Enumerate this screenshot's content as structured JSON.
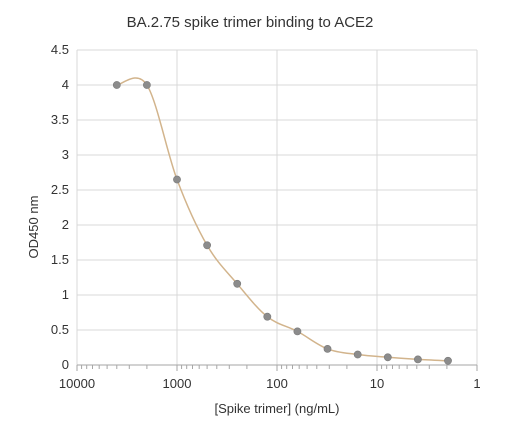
{
  "chart_data": {
    "type": "scatter",
    "title": "BA.2.75 spike trimer binding to ACE2",
    "xlabel": "[Spike trimer] (ng/mL)",
    "ylabel": "OD450 nm",
    "x_scale": "log",
    "x_reversed": true,
    "xlim": [
      1,
      10000
    ],
    "ylim": [
      0,
      4.5
    ],
    "x_ticks": [
      {
        "value": 10000,
        "label": "10000"
      },
      {
        "value": 1000,
        "label": "1000"
      },
      {
        "value": 100,
        "label": "100"
      },
      {
        "value": 10,
        "label": "10"
      },
      {
        "value": 1,
        "label": "1"
      }
    ],
    "y_ticks": [
      {
        "value": 0,
        "label": "0"
      },
      {
        "value": 0.5,
        "label": "0.5"
      },
      {
        "value": 1,
        "label": "1"
      },
      {
        "value": 1.5,
        "label": "1.5"
      },
      {
        "value": 2,
        "label": "2"
      },
      {
        "value": 2.5,
        "label": "2.5"
      },
      {
        "value": 3,
        "label": "3"
      },
      {
        "value": 3.5,
        "label": "3.5"
      },
      {
        "value": 4,
        "label": "4"
      },
      {
        "value": 4.5,
        "label": "4.5"
      }
    ],
    "grid": {
      "horizontal": true,
      "vertical": true
    },
    "colors": {
      "marker": "#8c8c8c",
      "curve": "#d2b48c",
      "grid": "#d9d9d9",
      "axis": "#a6a6a6"
    },
    "series": [
      {
        "x": [
          4000,
          2000,
          1000,
          500,
          250,
          125,
          62.5,
          31.25,
          15.6,
          7.8,
          3.9,
          1.95
        ],
        "y": [
          4.0,
          4.0,
          2.65,
          1.71,
          1.16,
          0.69,
          0.48,
          0.23,
          0.15,
          0.11,
          0.08,
          0.06
        ],
        "smoothed_line": true
      }
    ]
  }
}
